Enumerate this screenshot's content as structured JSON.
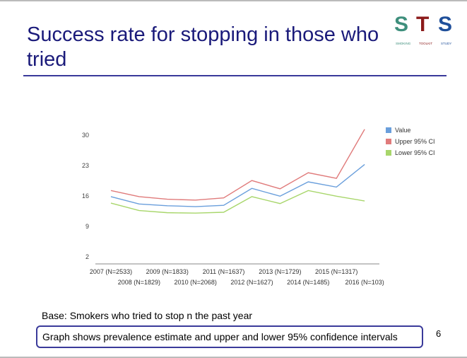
{
  "slide": {
    "title": "Success rate for stopping in those who tried",
    "logo_text": "STS",
    "logo_sub": [
      "SMOKING",
      "TOOLKIT",
      "STUDY"
    ],
    "base": "Base: Smokers who tried to stop n the past year",
    "note": "Graph shows prevalence estimate and upper and lower 95% confidence intervals",
    "page_number": "6"
  },
  "chart_data": {
    "type": "line",
    "categories": [
      "2007 (N=2533)",
      "2008 (N=1829)",
      "2009 (N=1833)",
      "2010 (N=2068)",
      "2011 (N=1637)",
      "2012 (N=1627)",
      "2013 (N=1729)",
      "2014 (N=1485)",
      "2015 (N=1317)",
      "2016 (N=103)"
    ],
    "yticks": [
      "2",
      "9",
      "16",
      "23",
      "30"
    ],
    "ylim": [
      0,
      32
    ],
    "legend_position": "right",
    "series": [
      {
        "name": "Value",
        "color": "#6a9fdc",
        "values": [
          15.7,
          14.0,
          13.6,
          13.4,
          13.7,
          17.6,
          15.8,
          19.1,
          17.9,
          23.1
        ]
      },
      {
        "name": "Upper 95% CI",
        "color": "#e07b7b",
        "values": [
          17.1,
          15.7,
          15.1,
          14.9,
          15.4,
          19.4,
          17.5,
          21.2,
          19.9,
          31.2
        ]
      },
      {
        "name": "Lower 95% CI",
        "color": "#a8d66b",
        "values": [
          14.2,
          12.5,
          12.0,
          11.9,
          12.1,
          15.7,
          14.1,
          17.1,
          15.8,
          14.7
        ]
      }
    ]
  }
}
